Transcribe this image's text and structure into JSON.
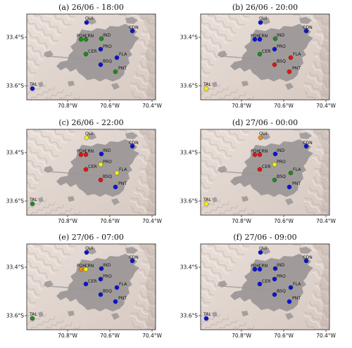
{
  "colors": {
    "blue": "#0a12d8",
    "green": "#1e8a1e",
    "red": "#e21414",
    "yellow": "#f5f00c",
    "orange": "#f08c1a",
    "urban": "#9a9696",
    "terrain_light": "#ece3dd",
    "terrain_dark": "#b8a9a3"
  },
  "axes": {
    "x_ticks": [
      "70.8°W",
      "70.6°W",
      "70.4°W"
    ],
    "y_ticks": [
      "33.4°S",
      "33.6°S"
    ]
  },
  "stations": [
    "QUI",
    "PDH",
    "CRN",
    "IND",
    "CDN",
    "PRO",
    "CER",
    "FLA",
    "BSQ",
    "PNT",
    "TAL"
  ],
  "panels": [
    {
      "title": "(a) 26/06 - 18:00",
      "status": {
        "QUI": "blue",
        "PDH": "green",
        "CRN": "green",
        "IND": "green",
        "CDN": "blue",
        "PRO": "blue",
        "CER": "green",
        "FLA": "blue",
        "BSQ": "blue",
        "PNT": "green",
        "TAL": "blue"
      }
    },
    {
      "title": "(b) 26/06 - 20:00",
      "status": {
        "QUI": "blue",
        "PDH": "blue",
        "CRN": "blue",
        "IND": "green",
        "CDN": "blue",
        "PRO": "blue",
        "CER": "green",
        "FLA": "red",
        "BSQ": "red",
        "PNT": "red",
        "TAL": "yellow"
      }
    },
    {
      "title": "(c) 26/06 - 22:00",
      "status": {
        "QUI": "yellow",
        "PDH": "red",
        "CRN": "red",
        "IND": "blue",
        "CDN": "blue",
        "PRO": "yellow",
        "CER": "red",
        "FLA": "yellow",
        "BSQ": "red",
        "PNT": "blue",
        "TAL": "green"
      }
    },
    {
      "title": "(d) 27/06 - 00:00",
      "status": {
        "QUI": "orange",
        "PDH": "red",
        "CRN": "red",
        "IND": "blue",
        "CDN": "blue",
        "PRO": "yellow",
        "CER": "red",
        "FLA": "green",
        "BSQ": "green",
        "PNT": "blue",
        "TAL": "yellow"
      }
    },
    {
      "title": "(e) 27/06 - 07:00",
      "status": {
        "QUI": "blue",
        "PDH": "orange",
        "CRN": "yellow",
        "IND": "blue",
        "CDN": "blue",
        "PRO": "blue",
        "CER": "blue",
        "FLA": "blue",
        "BSQ": "blue",
        "PNT": "blue",
        "TAL": "green"
      }
    },
    {
      "title": "(f) 27/06 - 09:00",
      "status": {
        "QUI": "blue",
        "PDH": "blue",
        "CRN": "blue",
        "IND": "blue",
        "CDN": "blue",
        "PRO": "blue",
        "CER": "blue",
        "FLA": "blue",
        "BSQ": "blue",
        "PNT": "blue",
        "TAL": "blue"
      }
    }
  ]
}
